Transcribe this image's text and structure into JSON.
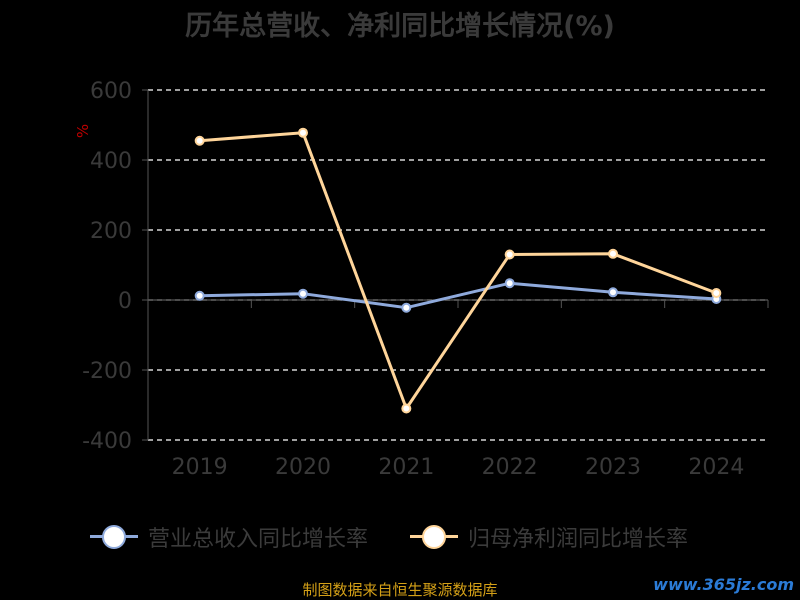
{
  "page": {
    "title": "历年总营收、净利同比增长情况(%)",
    "unit_label": "%",
    "source": "制图数据来自恒生聚源数据库",
    "watermark": "www.365jz.com"
  },
  "chart_data": {
    "type": "line",
    "title": "历年总营收、净利同比增长情况(%)",
    "ylabel": "%",
    "xlabel": "",
    "categories": [
      "2019",
      "2020",
      "2021",
      "2022",
      "2023",
      "2024"
    ],
    "ylim": [
      -400,
      600
    ],
    "yticks": [
      600,
      400,
      200,
      0,
      -200,
      -400
    ],
    "grid": true,
    "legend_position": "bottom",
    "series": [
      {
        "name": "营业总收入同比增长率",
        "color": "#8faadc",
        "values": [
          12,
          18,
          -22,
          48,
          22,
          3
        ]
      },
      {
        "name": "归母净利润同比增长率",
        "color": "#ffd59a",
        "values": [
          455,
          478,
          -310,
          130,
          132,
          20
        ]
      }
    ]
  }
}
